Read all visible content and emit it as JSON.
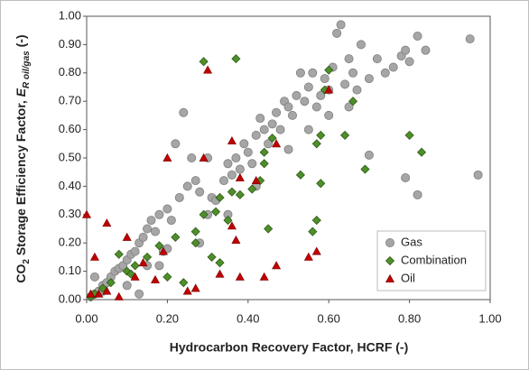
{
  "chart_data": {
    "type": "scatter",
    "x_label": "Hydrocarbon Recovery Factor, HCRF (-)",
    "y_label": {
      "a": "CO",
      "a_sub": "2",
      "b": " Storage Efficiency Factor, ",
      "c": "E",
      "c_sub": "R oil/gas",
      "d": " (-)"
    },
    "xlim": [
      0,
      1
    ],
    "ylim": [
      0,
      1
    ],
    "xticks": [
      {
        "value": 0,
        "label": "0.00"
      },
      {
        "value": 0.2,
        "label": "0.20"
      },
      {
        "value": 0.4,
        "label": "0.40"
      },
      {
        "value": 0.6,
        "label": "0.60"
      },
      {
        "value": 0.8,
        "label": "0.80"
      },
      {
        "value": 1,
        "label": "1.00"
      }
    ],
    "yticks": [
      {
        "value": 0,
        "label": "0.00"
      },
      {
        "value": 0.1,
        "label": "0.10"
      },
      {
        "value": 0.2,
        "label": "0.20"
      },
      {
        "value": 0.3,
        "label": "0.30"
      },
      {
        "value": 0.4,
        "label": "0.40"
      },
      {
        "value": 0.5,
        "label": "0.50"
      },
      {
        "value": 0.6,
        "label": "0.60"
      },
      {
        "value": 0.7,
        "label": "0.70"
      },
      {
        "value": 0.8,
        "label": "0.80"
      },
      {
        "value": 0.9,
        "label": "0.90"
      },
      {
        "value": 1,
        "label": "1.00"
      }
    ],
    "legend": "lower right",
    "series": [
      {
        "name": "Gas",
        "color": "#a6a6a6",
        "marker": "circle",
        "x": [
          0.01,
          0.02,
          0.03,
          0.04,
          0.05,
          0.06,
          0.07,
          0.08,
          0.09,
          0.1,
          0.11,
          0.12,
          0.13,
          0.14,
          0.15,
          0.16,
          0.17,
          0.18,
          0.19,
          0.2,
          0.21,
          0.22,
          0.23,
          0.24,
          0.25,
          0.26,
          0.27,
          0.28,
          0.3,
          0.31,
          0.32,
          0.34,
          0.35,
          0.36,
          0.37,
          0.38,
          0.39,
          0.4,
          0.41,
          0.42,
          0.43,
          0.44,
          0.45,
          0.46,
          0.47,
          0.48,
          0.49,
          0.5,
          0.51,
          0.52,
          0.53,
          0.54,
          0.55,
          0.56,
          0.57,
          0.58,
          0.59,
          0.6,
          0.61,
          0.62,
          0.63,
          0.64,
          0.65,
          0.66,
          0.67,
          0.68,
          0.7,
          0.72,
          0.74,
          0.76,
          0.78,
          0.79,
          0.8,
          0.82,
          0.84,
          0.95,
          0.97,
          0.82,
          0.79,
          0.7,
          0.13,
          0.1,
          0.15,
          0.02,
          0.04,
          0.28,
          0.35,
          0.42,
          0.5,
          0.55,
          0.6,
          0.65,
          0.3,
          0.2,
          0.18
        ],
        "values": [
          0.01,
          0.02,
          0.03,
          0.05,
          0.06,
          0.08,
          0.1,
          0.11,
          0.12,
          0.14,
          0.16,
          0.17,
          0.2,
          0.22,
          0.25,
          0.28,
          0.24,
          0.3,
          0.17,
          0.32,
          0.28,
          0.55,
          0.36,
          0.66,
          0.4,
          0.5,
          0.42,
          0.38,
          0.5,
          0.36,
          0.35,
          0.42,
          0.48,
          0.44,
          0.5,
          0.46,
          0.55,
          0.52,
          0.48,
          0.58,
          0.64,
          0.6,
          0.55,
          0.62,
          0.66,
          0.6,
          0.7,
          0.68,
          0.65,
          0.72,
          0.8,
          0.7,
          0.75,
          0.8,
          0.68,
          0.72,
          0.78,
          0.74,
          0.82,
          0.94,
          0.97,
          0.76,
          0.85,
          0.8,
          0.74,
          0.9,
          0.78,
          0.85,
          0.8,
          0.82,
          0.86,
          0.88,
          0.84,
          0.93,
          0.88,
          0.92,
          0.44,
          0.37,
          0.43,
          0.51,
          0.02,
          0.05,
          0.12,
          0.08,
          0.03,
          0.2,
          0.3,
          0.4,
          0.53,
          0.6,
          0.65,
          0.68,
          0.3,
          0.18,
          0.12
        ]
      },
      {
        "name": "Combination",
        "color": "#4e8f2a",
        "marker": "diamond",
        "x": [
          0.29,
          0.37,
          0.6,
          0.59,
          0.66,
          0.58,
          0.57,
          0.64,
          0.8,
          0.83,
          0.69,
          0.58,
          0.53,
          0.46,
          0.44,
          0.44,
          0.43,
          0.41,
          0.38,
          0.36,
          0.35,
          0.33,
          0.32,
          0.29,
          0.27,
          0.27,
          0.57,
          0.56,
          0.45,
          0.33,
          0.31,
          0.22,
          0.18,
          0.15,
          0.12,
          0.1,
          0.08,
          0.06,
          0.04,
          0.02,
          0.01,
          0.11,
          0.2,
          0.24
        ],
        "values": [
          0.84,
          0.85,
          0.81,
          0.74,
          0.7,
          0.58,
          0.55,
          0.58,
          0.58,
          0.52,
          0.46,
          0.41,
          0.44,
          0.57,
          0.52,
          0.48,
          0.42,
          0.39,
          0.37,
          0.38,
          0.28,
          0.36,
          0.31,
          0.3,
          0.24,
          0.2,
          0.28,
          0.24,
          0.25,
          0.13,
          0.15,
          0.22,
          0.19,
          0.15,
          0.12,
          0.1,
          0.16,
          0.06,
          0.04,
          0.02,
          0.01,
          0.09,
          0.08,
          0.06
        ]
      },
      {
        "name": "Oil",
        "color": "#c00000",
        "marker": "triangle",
        "x": [
          0,
          0.05,
          0.02,
          0.1,
          0.12,
          0.14,
          0.17,
          0.19,
          0.2,
          0.29,
          0.3,
          0.36,
          0.38,
          0.36,
          0.37,
          0.33,
          0.27,
          0.38,
          0.44,
          0.47,
          0.55,
          0.57,
          0.42,
          0.6,
          0.47,
          0.25,
          0.01,
          0.03,
          0.05,
          0.08
        ],
        "values": [
          0.3,
          0.27,
          0.15,
          0.22,
          0.08,
          0.13,
          0.07,
          0.17,
          0.5,
          0.5,
          0.81,
          0.56,
          0.43,
          0.26,
          0.21,
          0.09,
          0.04,
          0.08,
          0.08,
          0.12,
          0.15,
          0.17,
          0.42,
          0.74,
          0.55,
          0.03,
          0.02,
          0.02,
          0.03,
          0.01
        ]
      }
    ]
  }
}
